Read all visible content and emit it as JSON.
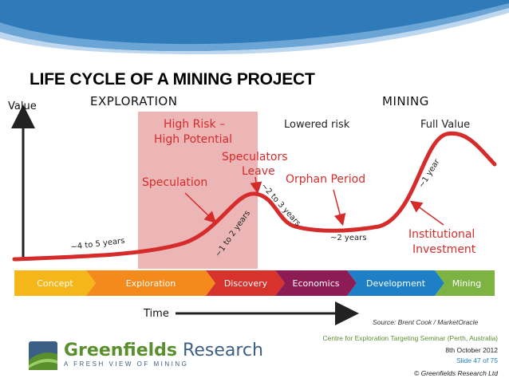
{
  "slide": {
    "title": "LIFE CYCLE OF A MINING PROJECT",
    "accent_color": "#d62b2b",
    "risk_box_color": "#e9a9a9"
  },
  "axes": {
    "y_label": "Value",
    "x_label": "Time"
  },
  "sections": {
    "exploration": "EXPLORATION",
    "mining": "MINING"
  },
  "annotations": {
    "high_risk_line1": "High Risk –",
    "high_risk_line2": "High Potential",
    "speculators_line1": "Speculators",
    "speculators_line2": "Leave",
    "speculation": "Speculation",
    "orphan_period": "Orphan Period",
    "lowered_risk": "Lowered risk",
    "full_value": "Full Value",
    "institutional_line1": "Institutional",
    "institutional_line2": "Investment",
    "dur_4_5": "~4 to 5 years",
    "dur_1_2": "~1 to 2 years",
    "dur_2_3": "~2 to 3 years",
    "dur_2": "~2 years",
    "dur_1": "~1 year"
  },
  "stages": [
    {
      "label": "Concept",
      "color": "#f5b61a"
    },
    {
      "label": "Exploration",
      "color": "#f38a1b"
    },
    {
      "label": "Discovery",
      "color": "#d8322c"
    },
    {
      "label": "Economics",
      "color": "#8e1c54"
    },
    {
      "label": "Development",
      "color": "#1f7fc6"
    },
    {
      "label": "Mining",
      "color": "#7cb342"
    }
  ],
  "footer": {
    "source": "Source: Brent Cook / MarketOracle",
    "seminar": "Centre for Exploration Targeting Seminar (Perth, Australia)",
    "date": "8th October 2012",
    "slide_number": "Slide 47 of 75",
    "copyright": "© Greenfields Research Ltd",
    "logo_word1": "Greenfields",
    "logo_word2": "Research",
    "tagline": "A FRESH VIEW OF MINING"
  }
}
